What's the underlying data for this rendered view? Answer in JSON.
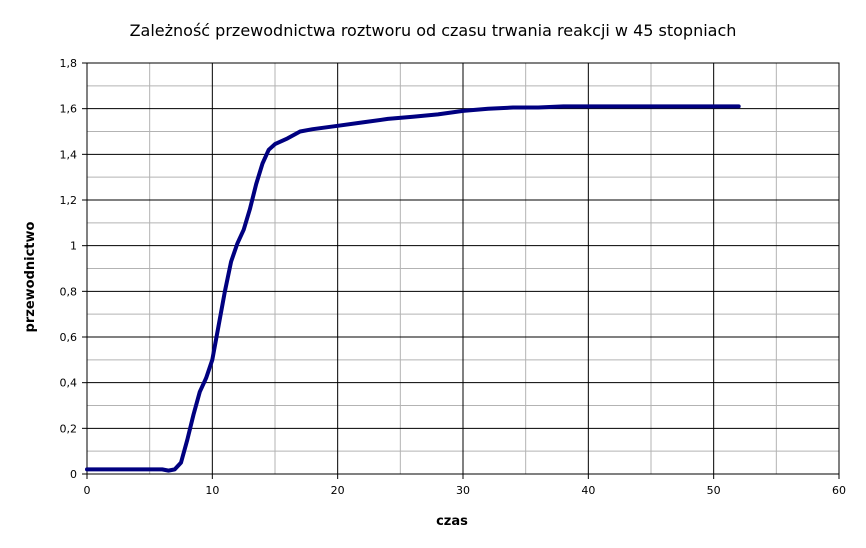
{
  "chart_data": {
    "type": "line",
    "title": "Zależność przewodnictwa roztworu od czasu trwania reakcji w 45 stopniach",
    "xlabel": "czas",
    "ylabel": "przewodnictwo",
    "xlim": [
      0,
      60
    ],
    "ylim": [
      0,
      1.8
    ],
    "x_ticks": [
      0,
      10,
      20,
      30,
      40,
      50,
      60
    ],
    "x_tick_labels": [
      "0",
      "10",
      "20",
      "30",
      "40",
      "50",
      "60"
    ],
    "y_ticks": [
      0,
      0.2,
      0.4,
      0.6,
      0.8,
      1,
      1.2,
      1.4,
      1.6,
      1.8
    ],
    "y_tick_labels": [
      "0",
      "0,2",
      "0,4",
      "0,6",
      "0,8",
      "1",
      "1,2",
      "1,4",
      "1,6",
      "1,8"
    ],
    "grid": true,
    "legend": "none",
    "colors": {
      "series": "#000080",
      "grid_major": "#000000",
      "grid_minor": "#b3b3b3"
    },
    "series": [
      {
        "x": [
          0,
          2,
          4,
          6,
          6.5,
          7,
          7.5,
          8,
          8.5,
          9,
          9.5,
          10,
          10.5,
          11,
          11.5,
          12,
          12.5,
          13,
          13.5,
          14,
          14.5,
          15,
          16,
          17,
          18,
          20,
          22,
          24,
          26,
          28,
          30,
          32,
          34,
          36,
          38,
          40,
          44,
          48,
          52
        ],
        "y": [
          0.02,
          0.02,
          0.02,
          0.02,
          0.015,
          0.02,
          0.05,
          0.15,
          0.26,
          0.36,
          0.42,
          0.5,
          0.65,
          0.8,
          0.93,
          1.01,
          1.07,
          1.16,
          1.27,
          1.36,
          1.42,
          1.445,
          1.47,
          1.5,
          1.51,
          1.525,
          1.54,
          1.555,
          1.565,
          1.575,
          1.59,
          1.6,
          1.605,
          1.605,
          1.61,
          1.61,
          1.61,
          1.61,
          1.61
        ]
      }
    ]
  }
}
